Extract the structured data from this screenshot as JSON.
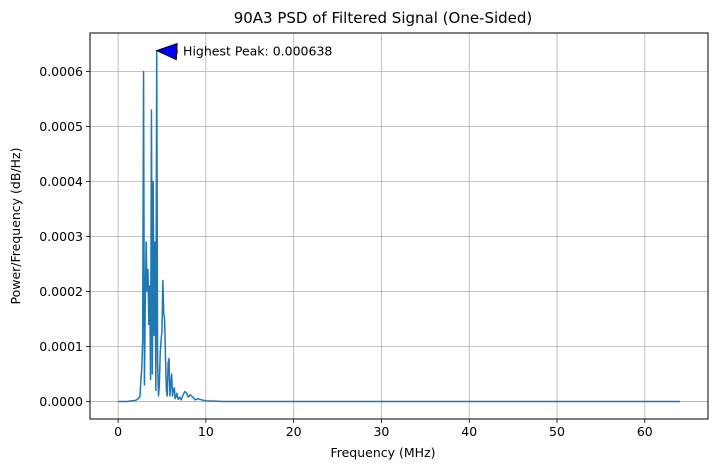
{
  "chart_data": {
    "type": "line",
    "title": "90A3 PSD of Filtered Signal (One-Sided)",
    "xlabel": "Frequency (MHz)",
    "ylabel": "Power/Frequency (dB/Hz)",
    "xlim": [
      -3.2,
      67.2
    ],
    "ylim": [
      -3.19e-05,
      0.00067
    ],
    "grid": true,
    "x_ticks": [
      0,
      10,
      20,
      30,
      40,
      50,
      60
    ],
    "x_tick_labels": [
      "0",
      "10",
      "20",
      "30",
      "40",
      "50",
      "60"
    ],
    "y_ticks": [
      0,
      0.0001,
      0.0002,
      0.0003,
      0.0004,
      0.0005,
      0.0006
    ],
    "y_tick_labels": [
      "0.0000",
      "0.0001",
      "0.0002",
      "0.0003",
      "0.0004",
      "0.0005",
      "0.0006"
    ],
    "series": [
      {
        "color": "#1f77b4",
        "x": [
          0,
          1,
          2.0,
          2.3,
          2.5,
          2.6,
          2.7,
          2.8,
          2.9,
          3.0,
          3.1,
          3.2,
          3.3,
          3.4,
          3.5,
          3.6,
          3.7,
          3.8,
          3.9,
          4.0,
          4.1,
          4.2,
          4.3,
          4.4,
          4.5,
          4.6,
          4.7,
          4.8,
          4.9,
          5.0,
          5.1,
          5.2,
          5.3,
          5.4,
          5.5,
          5.6,
          5.7,
          5.8,
          5.9,
          6.0,
          6.1,
          6.2,
          6.3,
          6.4,
          6.5,
          6.6,
          6.7,
          6.8,
          6.9,
          7.0,
          7.2,
          7.4,
          7.6,
          7.8,
          8.0,
          8.2,
          8.5,
          8.8,
          9.1,
          9.5,
          10,
          11,
          12,
          20,
          30,
          40,
          50,
          60,
          64
        ],
        "y": [
          0,
          0,
          2e-06,
          5e-06,
          1e-05,
          4e-05,
          6e-05,
          0.00011,
          0.0006,
          3e-05,
          0.00018,
          0.00029,
          0.0002,
          0.00024,
          0.00014,
          0.00021,
          4e-05,
          0.00053,
          5e-05,
          0.0004,
          0.00012,
          0.00029,
          2e-05,
          0.000638,
          7e-05,
          1e-05,
          3e-05,
          9e-05,
          0.00011,
          0.00013,
          0.00022,
          0.00016,
          0.00015,
          8e-05,
          2e-05,
          1e-05,
          7e-05,
          7.8e-05,
          1e-05,
          3e-05,
          5e-05,
          1e-05,
          2e-05,
          2.5e-05,
          5e-06,
          1e-05,
          1.5e-05,
          5e-06,
          4e-06,
          8e-06,
          3e-06,
          1.2e-05,
          1.8e-05,
          1.5e-05,
          8e-06,
          1.2e-05,
          8e-06,
          3e-06,
          5e-06,
          3e-06,
          1e-06,
          5e-07,
          0,
          0,
          0,
          0,
          0,
          0,
          0
        ]
      }
    ],
    "annotation": {
      "text": "Highest Peak: 0.000638",
      "point_x": 4.4,
      "point_y": 0.000638,
      "text_x": 7.4,
      "text_y": 0.000638,
      "arrow_color": "#0000ff"
    }
  }
}
